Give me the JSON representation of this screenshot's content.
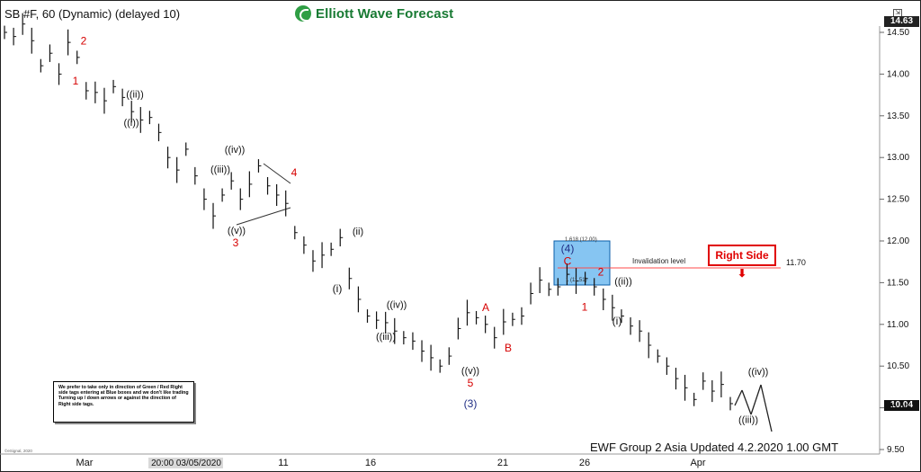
{
  "app": {
    "symbol_title": "SB #F, 60 (Dynamic) (delayed 10)",
    "logo_text": "Elliott Wave Forecast",
    "last_price": "14.63",
    "current_price": "10.04",
    "footer": "EWF Group 2 Asia  Updated 4.2.2020 1.00 GMT",
    "note": "We prefer to take only in direction of Green / Red Right side tags entering at Blue boxes and we don't like trading Turning up / down arrows or against the direction of Right side tags.",
    "right_side_label": "Right Side",
    "invalidation_label": "Invalidation level",
    "invalidation_value": "11.70",
    "small_copyright": "©eSignal, 2020",
    "fib_1618": "1.618 (12.00)",
    "fib_small": "1 (11.51)"
  },
  "chart_data": {
    "type": "line",
    "title": "SB #F, 60 (Dynamic) (delayed 10)",
    "xlabel": "",
    "ylabel": "",
    "ylim": [
      9.5,
      14.7
    ],
    "x_ticks": [
      "Mar",
      "20:00 03/05/2020",
      "11",
      "16",
      "21",
      "26",
      "Apr"
    ],
    "y_ticks": [
      "14.50",
      "14.00",
      "13.50",
      "13.00",
      "12.50",
      "12.00",
      "11.50",
      "11.00",
      "10.50",
      "10.00",
      "9.50"
    ],
    "series": [
      {
        "values": [
          14.5,
          14.45,
          14.6,
          14.4,
          14.1,
          14.25,
          14.0,
          14.38,
          14.2,
          13.8,
          13.78,
          13.68,
          13.85,
          13.72,
          13.55,
          13.45,
          13.48,
          13.3,
          13.0,
          12.85,
          13.1,
          12.78,
          12.5,
          12.3,
          12.55,
          12.72,
          12.5,
          12.68,
          12.9,
          12.66,
          12.55,
          12.45,
          12.1,
          11.95,
          11.76,
          11.83,
          11.9,
          12.04,
          11.55,
          11.3,
          11.1,
          11.05,
          11.02,
          10.92,
          10.84,
          10.8,
          10.68,
          10.6,
          10.5,
          10.62,
          10.95,
          11.14,
          11.08,
          11.0,
          10.84,
          11.03,
          11.06,
          11.1,
          11.37,
          11.53,
          11.42,
          11.45,
          11.6,
          11.52,
          11.55,
          11.45,
          11.3,
          11.2,
          11.1,
          10.98,
          10.92,
          10.75,
          10.62,
          10.5,
          10.35,
          10.24,
          10.1,
          10.32,
          10.2,
          10.28,
          10.05
        ]
      }
    ],
    "annotations": [
      {
        "label": "2",
        "x": "Mar",
        "y": 14.4,
        "color": "red"
      },
      {
        "label": "1",
        "x": "Mar",
        "y": 13.92,
        "color": "red"
      },
      {
        "label": "((ii))",
        "x": "Mar",
        "y": 13.76,
        "color": "black"
      },
      {
        "label": "((i))",
        "x": "Mar",
        "y": 13.42,
        "color": "black"
      },
      {
        "label": "((iv))",
        "x": "Mar",
        "y": 13.1,
        "color": "black"
      },
      {
        "label": "((iii))",
        "x": "Mar",
        "y": 12.86,
        "color": "black"
      },
      {
        "label": "4",
        "x": "11",
        "y": 12.82,
        "color": "red"
      },
      {
        "label": "((v))",
        "x": "11",
        "y": 12.13,
        "color": "black"
      },
      {
        "label": "3",
        "x": "11",
        "y": 11.98,
        "color": "red"
      },
      {
        "label": "(ii)",
        "x": "16",
        "y": 12.12,
        "color": "black"
      },
      {
        "label": "(i)",
        "x": "16",
        "y": 11.43,
        "color": "black"
      },
      {
        "label": "((iv))",
        "x": "16",
        "y": 11.24,
        "color": "black"
      },
      {
        "label": "((iii))",
        "x": "16",
        "y": 10.86,
        "color": "black"
      },
      {
        "label": "((v))",
        "x": "21",
        "y": 10.45,
        "color": "black"
      },
      {
        "label": "5",
        "x": "21",
        "y": 10.3,
        "color": "red"
      },
      {
        "label": "(3)",
        "x": "21",
        "y": 10.05,
        "color": "navy"
      },
      {
        "label": "A",
        "x": "21",
        "y": 11.2,
        "color": "red"
      },
      {
        "label": "B",
        "x": "21",
        "y": 10.72,
        "color": "red"
      },
      {
        "label": "(4)",
        "x": "26",
        "y": 11.91,
        "color": "navy"
      },
      {
        "label": "C",
        "x": "26",
        "y": 11.76,
        "color": "red"
      },
      {
        "label": "2",
        "x": "26",
        "y": 11.63,
        "color": "red"
      },
      {
        "label": "((ii))",
        "x": "26",
        "y": 11.52,
        "color": "black"
      },
      {
        "label": "1",
        "x": "26",
        "y": 11.21,
        "color": "red"
      },
      {
        "label": "(i)",
        "x": "26",
        "y": 11.04,
        "color": "black"
      },
      {
        "label": "((iv))",
        "x": "Apr",
        "y": 10.44,
        "color": "black"
      },
      {
        "label": "((iii))",
        "x": "Apr",
        "y": 9.86,
        "color": "black"
      }
    ],
    "grid": false,
    "legend": "none"
  }
}
